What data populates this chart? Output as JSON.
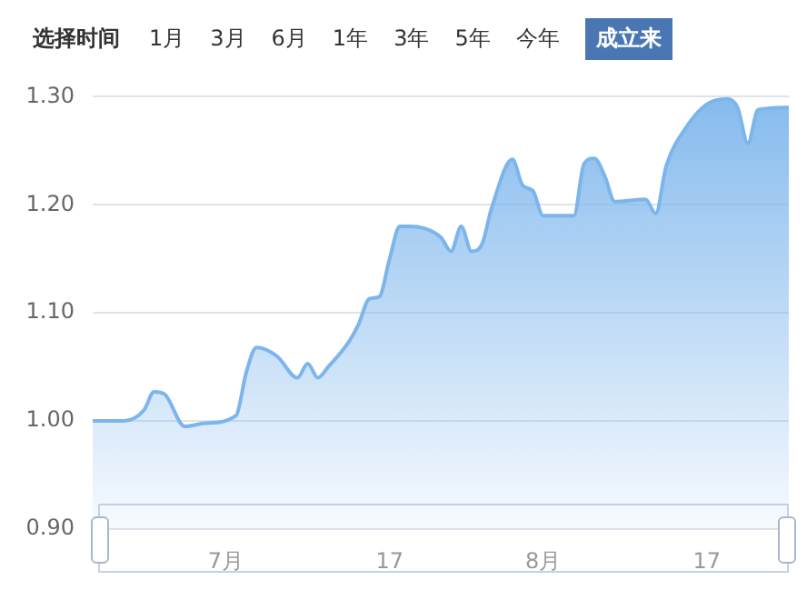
{
  "chart_data": {
    "type": "area",
    "annotations": [
      "选择时间",
      "1月",
      "3月",
      "6月",
      "1年",
      "3年",
      "5年",
      "今年",
      "成立来"
    ],
    "x": [
      "--06-18",
      "--06-21",
      "--06-23",
      "--06-24",
      "--06-25",
      "--06-27",
      "--06-29",
      "--07-02",
      "--07-03",
      "--07-04",
      "--07-06",
      "--07-08",
      "--07-09",
      "--07-10",
      "--07-11",
      "--07-13",
      "--07-14",
      "--07-15",
      "--07-16",
      "--07-17",
      "--07-18",
      "--07-19",
      "--07-22",
      "--07-23",
      "--07-24",
      "--07-25",
      "--07-26",
      "--07-27",
      "--07-29",
      "--07-30",
      "--07-31",
      "--08-01",
      "--08-04",
      "--08-05",
      "--08-06",
      "--08-07",
      "--08-08",
      "--08-11",
      "--08-12",
      "--08-13",
      "--08-15",
      "--08-17",
      "--08-19",
      "--08-20",
      "--08-21",
      "--08-22",
      "--08-25"
    ],
    "series": [
      {
        "color": "#7cb5ec",
        "values": [
          1.0,
          1.0,
          1.01,
          1.027,
          1.025,
          0.995,
          0.998,
          1.005,
          1.045,
          1.068,
          1.06,
          1.04,
          1.053,
          1.04,
          1.05,
          1.073,
          1.09,
          1.113,
          1.115,
          1.15,
          1.18,
          1.18,
          1.17,
          1.157,
          1.18,
          1.157,
          1.163,
          1.198,
          1.242,
          1.218,
          1.213,
          1.19,
          1.19,
          1.238,
          1.243,
          1.227,
          1.203,
          1.205,
          1.192,
          1.235,
          1.272,
          1.293,
          1.298,
          1.29,
          1.257,
          1.288,
          1.29
        ]
      }
    ],
    "xlim": [
      "--06-18",
      "--08-25"
    ],
    "xticks": [
      {
        "value": "--07-01",
        "label": "7月"
      },
      {
        "value": "--07-17",
        "label": "17"
      },
      {
        "value": "--08-01",
        "label": "8月"
      },
      {
        "value": "--08-17",
        "label": "17"
      }
    ],
    "ylim": [
      0.9,
      1.3
    ],
    "yticks": [
      {
        "value": 0.9,
        "label": "0.90"
      },
      {
        "value": 1.0,
        "label": "1.00"
      },
      {
        "value": 1.1,
        "label": "1.10"
      },
      {
        "value": 1.2,
        "label": "1.20"
      },
      {
        "value": 1.3,
        "label": "1.30"
      }
    ],
    "grid": "y",
    "legend": false
  }
}
